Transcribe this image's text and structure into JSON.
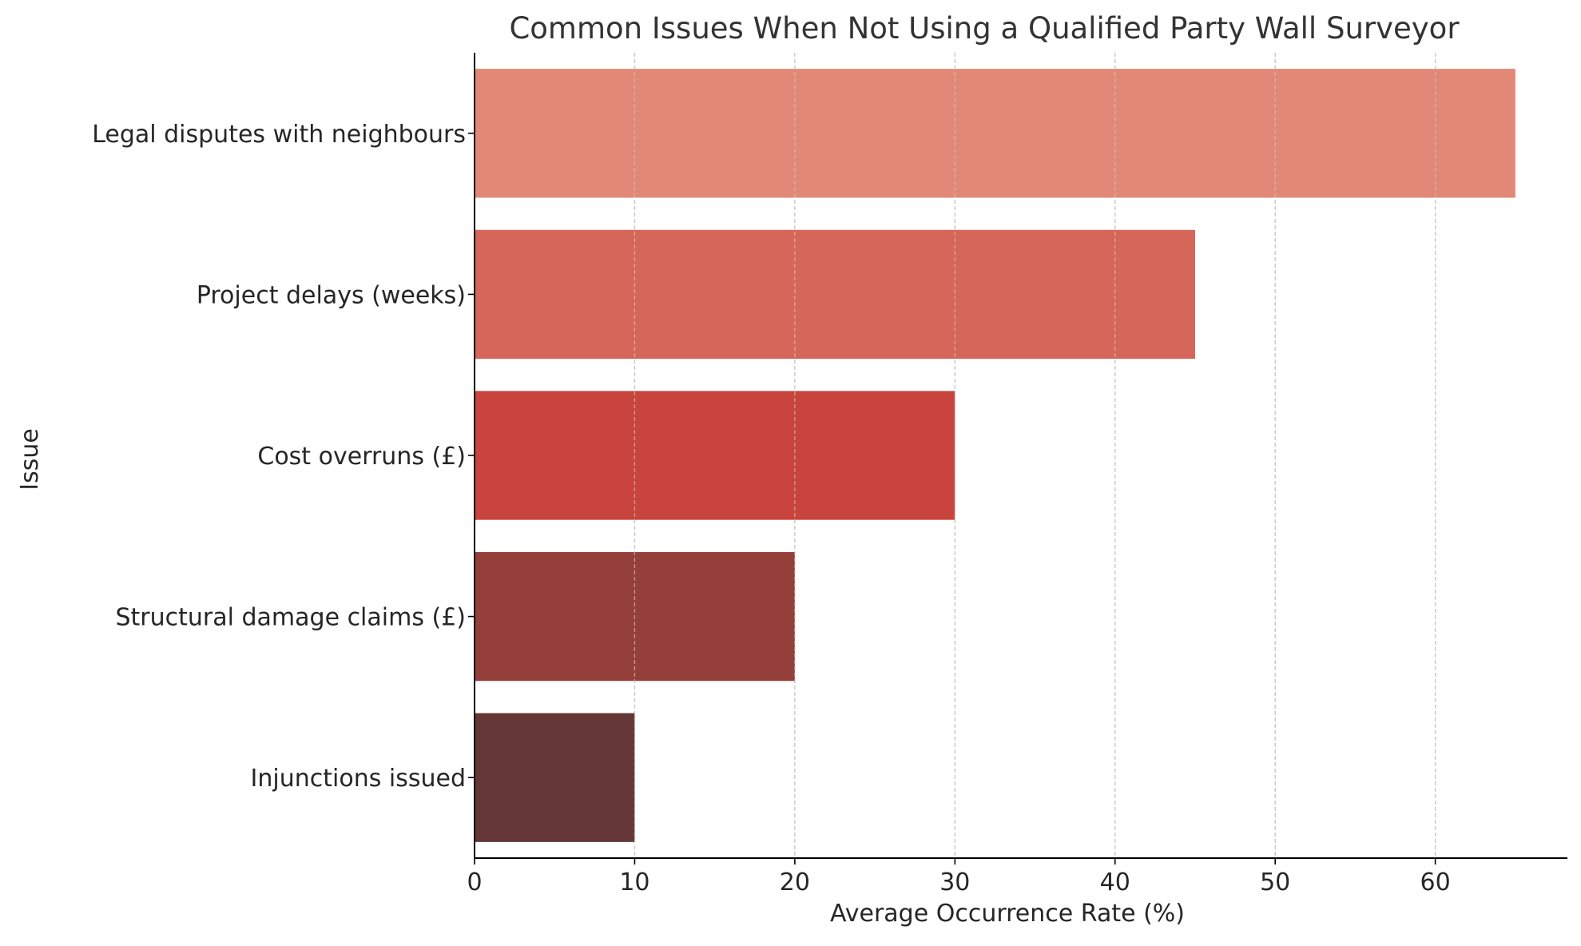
{
  "chart_data": {
    "type": "bar",
    "orientation": "horizontal",
    "title": "Common Issues When Not Using a Qualified Party Wall Surveyor",
    "xlabel": "Average Occurrence Rate (%)",
    "ylabel": "Issue",
    "categories": [
      "Legal disputes with neighbours",
      "Project delays (weeks)",
      "Cost overruns (£)",
      "Structural damage claims (£)",
      "Injunctions issued"
    ],
    "values": [
      65,
      45,
      30,
      20,
      10
    ],
    "colors": [
      "#e28877",
      "#d6665a",
      "#c9443d",
      "#953f3a",
      "#653737"
    ],
    "xlim": [
      0,
      68.25
    ],
    "xticks": [
      0,
      10,
      20,
      30,
      40,
      50,
      60
    ],
    "grid": {
      "x": true,
      "y": false
    },
    "grid_color": "#c8c8c8"
  }
}
